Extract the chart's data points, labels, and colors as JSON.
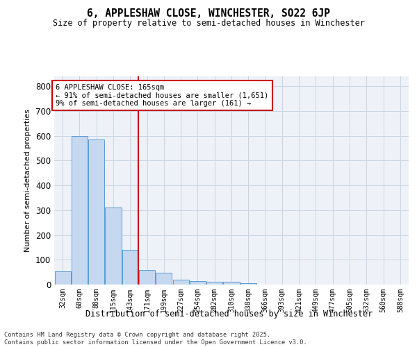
{
  "title": "6, APPLESHAW CLOSE, WINCHESTER, SO22 6JP",
  "subtitle": "Size of property relative to semi-detached houses in Winchester",
  "xlabel": "Distribution of semi-detached houses by size in Winchester",
  "ylabel": "Number of semi-detached properties",
  "categories": [
    "32sqm",
    "60sqm",
    "88sqm",
    "115sqm",
    "143sqm",
    "171sqm",
    "199sqm",
    "227sqm",
    "254sqm",
    "282sqm",
    "310sqm",
    "338sqm",
    "366sqm",
    "393sqm",
    "421sqm",
    "449sqm",
    "477sqm",
    "505sqm",
    "532sqm",
    "560sqm",
    "588sqm"
  ],
  "values": [
    52,
    600,
    585,
    312,
    140,
    60,
    48,
    20,
    15,
    10,
    10,
    5,
    0,
    0,
    0,
    0,
    0,
    0,
    0,
    0,
    0
  ],
  "bar_color": "#c5d8f0",
  "bar_edge_color": "#5b9bd5",
  "annotation_title": "6 APPLESHAW CLOSE: 165sqm",
  "annotation_line1": "← 91% of semi-detached houses are smaller (1,651)",
  "annotation_line2": "9% of semi-detached houses are larger (161) →",
  "annotation_box_color": "#ffffff",
  "annotation_box_edge": "#cc0000",
  "vline_color": "#cc0000",
  "vline_index": 5,
  "grid_color": "#c8d4e3",
  "background_color": "#eef2f8",
  "ylim": [
    0,
    840
  ],
  "yticks": [
    0,
    100,
    200,
    300,
    400,
    500,
    600,
    700,
    800
  ],
  "footer_line1": "Contains HM Land Registry data © Crown copyright and database right 2025.",
  "footer_line2": "Contains public sector information licensed under the Open Government Licence v3.0."
}
